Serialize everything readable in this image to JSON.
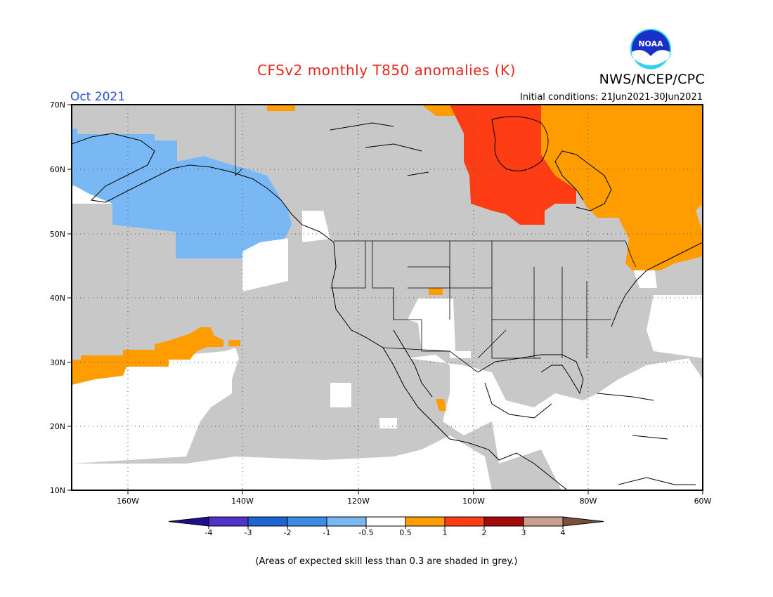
{
  "header": {
    "title": "CFSv2 monthly T850 anomalies (K)",
    "agency": "NWS/NCEP/CPC",
    "logo_text": "NOAA",
    "target_month": "Oct 2021",
    "initial_conditions": "Initial conditions: 21Jun2021-30Jun2021"
  },
  "map": {
    "lat_labels": [
      "70N",
      "60N",
      "50N",
      "40N",
      "30N",
      "20N",
      "10N"
    ],
    "lon_labels": [
      "160W",
      "140W",
      "120W",
      "100W",
      "80W",
      "60W"
    ],
    "region": "North America",
    "lat_range": [
      10,
      70
    ],
    "lon_range": [
      -170,
      -60
    ],
    "shading": {
      "grey_meaning": "skill < 0.3",
      "grey_color": "#c8c8c8",
      "regions": [
        {
          "name": "Alaska / Gulf of Alaska",
          "category": "-1 to -0.5",
          "color": "#7ab8f5"
        },
        {
          "name": "Hudson Bay / central Canada",
          "category": "1 to 2",
          "color": "#ff3d14"
        },
        {
          "name": "Eastern Canada / Quebec / Labrador",
          "category": "0.5 to 1",
          "color": "#ff9d00"
        },
        {
          "name": "Subtropical Pacific band near Hawaii",
          "category": "0.5 to 1",
          "color": "#ff9d00"
        }
      ]
    }
  },
  "colorbar": {
    "labels": [
      "-4",
      "-3",
      "-2",
      "-1",
      "-0.5",
      "0.5",
      "1",
      "2",
      "3",
      "4"
    ],
    "colors": [
      "#1e0f8c",
      "#5033c8",
      "#1e64d2",
      "#3c8ce6",
      "#7ab8f5",
      "#ffffff",
      "#ff9d00",
      "#ff3d14",
      "#a50a0a",
      "#c8a08c",
      "#7a4f3c"
    ]
  },
  "footnote": "(Areas of expected skill less than 0.3 are shaded in grey.)"
}
